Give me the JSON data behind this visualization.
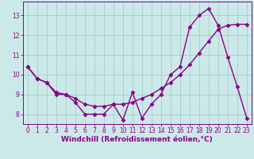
{
  "title": "",
  "xlabel": "Windchill (Refroidissement éolien,°C)",
  "ylabel": "",
  "background_color": "#cce9e9",
  "line_color": "#880088",
  "grid_color": "#aacccc",
  "xlim": [
    -0.5,
    23.5
  ],
  "ylim": [
    7.5,
    13.7
  ],
  "xticks": [
    0,
    1,
    2,
    3,
    4,
    5,
    6,
    7,
    8,
    9,
    10,
    11,
    12,
    13,
    14,
    15,
    16,
    17,
    18,
    19,
    20,
    21,
    22,
    23
  ],
  "yticks": [
    8,
    9,
    10,
    11,
    12,
    13
  ],
  "line1_x": [
    0,
    1,
    2,
    3,
    4,
    5,
    6,
    7,
    8,
    9,
    10,
    11,
    12,
    13,
    14,
    15,
    16,
    17,
    18,
    19,
    20,
    21,
    22,
    23
  ],
  "line1_y": [
    10.4,
    9.8,
    9.6,
    9.0,
    9.0,
    8.6,
    8.0,
    8.0,
    8.0,
    8.5,
    7.7,
    9.1,
    7.8,
    8.5,
    9.0,
    10.0,
    10.4,
    12.4,
    13.0,
    13.35,
    12.5,
    10.9,
    9.4,
    7.8
  ],
  "line2_x": [
    0,
    1,
    2,
    3,
    4,
    5,
    6,
    7,
    8,
    9,
    10,
    11,
    12,
    13,
    14,
    15,
    16,
    17,
    18,
    19,
    20,
    21,
    22,
    23
  ],
  "line2_y": [
    10.4,
    9.8,
    9.6,
    9.1,
    9.0,
    8.8,
    8.5,
    8.4,
    8.4,
    8.5,
    8.5,
    8.6,
    8.8,
    9.0,
    9.3,
    9.6,
    10.0,
    10.5,
    11.1,
    11.7,
    12.3,
    12.5,
    12.55,
    12.55
  ],
  "marker": "D",
  "markersize": 2.5,
  "linewidth": 1.0,
  "tick_fontsize": 5.5,
  "label_fontsize": 6.5
}
